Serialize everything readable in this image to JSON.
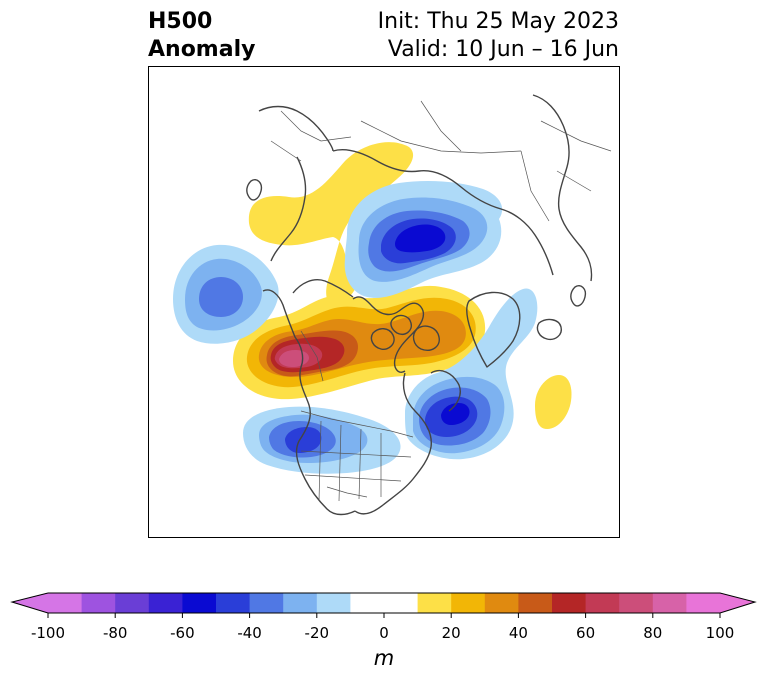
{
  "title": {
    "left_line1": "H500",
    "left_line2": "Anomaly",
    "right_line1": "Init: Thu 25 May 2023",
    "right_line2": "Valid: 10 Jun – 16 Jun"
  },
  "colorbar": {
    "unit": "m",
    "ticks": [
      "-100",
      "-80",
      "-60",
      "-40",
      "-20",
      "0",
      "20",
      "40",
      "60",
      "80",
      "100"
    ],
    "bins": [
      {
        "from": -100,
        "to": -90,
        "color": "#d575e6"
      },
      {
        "from": -90,
        "to": -80,
        "color": "#9e53e0"
      },
      {
        "from": -80,
        "to": -70,
        "color": "#6a3ed6"
      },
      {
        "from": -70,
        "to": -60,
        "color": "#3a22d4"
      },
      {
        "from": -60,
        "to": -50,
        "color": "#0a0ad2"
      },
      {
        "from": -50,
        "to": -40,
        "color": "#2a3ed8"
      },
      {
        "from": -40,
        "to": -30,
        "color": "#5078e4"
      },
      {
        "from": -30,
        "to": -20,
        "color": "#7db2f0"
      },
      {
        "from": -20,
        "to": -10,
        "color": "#aedaf8"
      },
      {
        "from": -10,
        "to": 10,
        "color": "#ffffff"
      },
      {
        "from": 10,
        "to": 20,
        "color": "#fde047"
      },
      {
        "from": 20,
        "to": 30,
        "color": "#f2b606"
      },
      {
        "from": 30,
        "to": 40,
        "color": "#e08a10"
      },
      {
        "from": 40,
        "to": 50,
        "color": "#c85a18"
      },
      {
        "from": 50,
        "to": 60,
        "color": "#b42626"
      },
      {
        "from": 60,
        "to": 70,
        "color": "#c23a55"
      },
      {
        "from": 70,
        "to": 80,
        "color": "#cc4e7a"
      },
      {
        "from": 80,
        "to": 90,
        "color": "#d762a8"
      },
      {
        "from": 90,
        "to": 100,
        "color": "#e874d8"
      }
    ],
    "extend_min_color": "#d575e6",
    "extend_max_color": "#e874d8"
  },
  "map": {
    "projection": "north polar stereographic",
    "coastline_color": "#444444",
    "anomaly_centers": [
      {
        "name": "central north pacific low",
        "value": -40
      },
      {
        "name": "alaska high",
        "value": 75
      },
      {
        "name": "canada ridge",
        "value": 35
      },
      {
        "name": "arctic siberia low",
        "value": -55
      },
      {
        "name": "northwest atlantic low",
        "value": -55
      },
      {
        "name": "western us low",
        "value": -45
      },
      {
        "name": "greenland-atlantic ridge",
        "value": 15
      },
      {
        "name": "east atlantic high",
        "value": 15
      }
    ]
  }
}
